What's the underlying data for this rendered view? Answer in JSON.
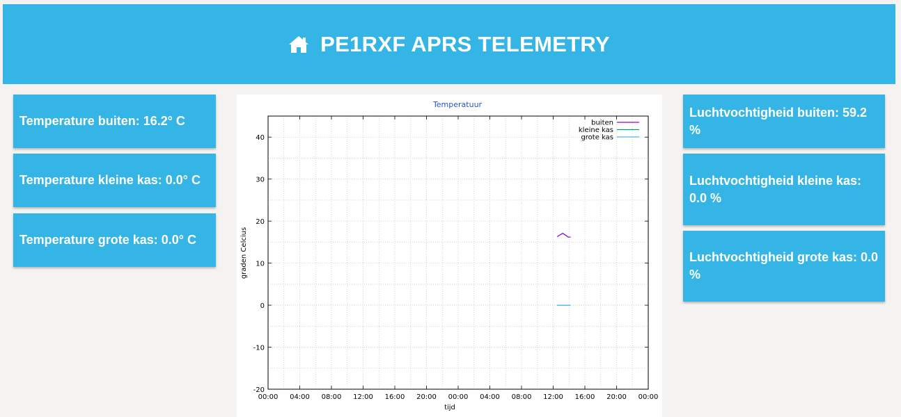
{
  "header": {
    "title": "PE1RXF APRS TELEMETRY",
    "icon": "home-icon"
  },
  "left_cards": [
    {
      "label": "Temperature buiten: 16.2° C"
    },
    {
      "label": "Temperature kleine kas: 0.0° C"
    },
    {
      "label": "Temperature grote kas: 0.0° C"
    }
  ],
  "right_cards": [
    {
      "label": "Luchtvochtigheid buiten: 59.2 %"
    },
    {
      "label": "Luchtvochtigheid kleine kas: 0.0 %"
    },
    {
      "label": "Luchtvochtigheid grote kas: 0.0 %"
    }
  ],
  "colors": {
    "accent": "#35b5e6",
    "background": "#f4f3f2",
    "chart_title": "#2a52be"
  },
  "chart_data": {
    "type": "line",
    "title": "Temperatuur",
    "xlabel": "tijd",
    "ylabel": "graden Celcius",
    "ylim": [
      -20,
      45
    ],
    "xlim": [
      0,
      48
    ],
    "x_unit": "hours",
    "yticks": [
      -20,
      -10,
      0,
      10,
      20,
      30,
      40
    ],
    "xticks": [
      {
        "x": 0,
        "label": "00:00"
      },
      {
        "x": 4,
        "label": "04:00"
      },
      {
        "x": 8,
        "label": "08:00"
      },
      {
        "x": 12,
        "label": "12:00"
      },
      {
        "x": 16,
        "label": "16:00"
      },
      {
        "x": 20,
        "label": "20:00"
      },
      {
        "x": 24,
        "label": "00:00"
      },
      {
        "x": 28,
        "label": "04:00"
      },
      {
        "x": 32,
        "label": "08:00"
      },
      {
        "x": 36,
        "label": "12:00"
      },
      {
        "x": 40,
        "label": "16:00"
      },
      {
        "x": 44,
        "label": "20:00"
      },
      {
        "x": 48,
        "label": "00:00"
      }
    ],
    "grid": true,
    "legend": "top-right",
    "series": [
      {
        "name": "buiten",
        "color": "#9400d3",
        "points": [
          [
            36.5,
            16.3
          ],
          [
            37.2,
            17.1
          ],
          [
            37.9,
            16.2
          ],
          [
            38.2,
            16.2
          ]
        ]
      },
      {
        "name": "kleine kas",
        "color": "#009e73",
        "points": [
          [
            36.5,
            0
          ],
          [
            38.2,
            0
          ]
        ]
      },
      {
        "name": "grote kas",
        "color": "#56b4e9",
        "points": [
          [
            36.5,
            0
          ],
          [
            38.2,
            0
          ]
        ]
      }
    ]
  }
}
